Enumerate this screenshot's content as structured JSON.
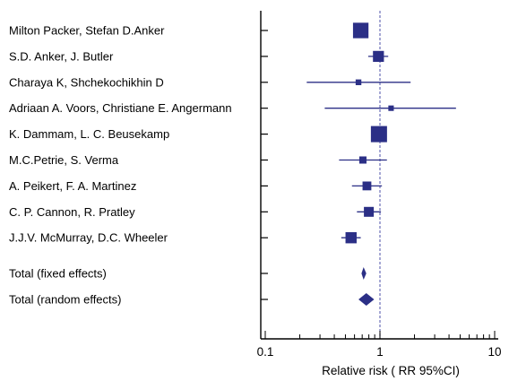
{
  "chart_data": {
    "type": "forest",
    "xlabel": "Relative risk ( RR 95%CI)",
    "x_scale": "log",
    "xlim": [
      0.1,
      10
    ],
    "x_ticks": [
      "0.1",
      "1",
      "10"
    ],
    "reference_line": 1,
    "colors": {
      "marker": "#2b2f86",
      "axis": "#000000",
      "reference": "#6b6fb8"
    },
    "studies": [
      {
        "label": "Milton Packer, Stefan D.Anker",
        "rr": 0.68,
        "ci": [
          0.6,
          0.76
        ]
      },
      {
        "label": "S.D. Anker, J. Butler",
        "rr": 0.97,
        "ci": [
          0.79,
          1.18
        ]
      },
      {
        "label": "Charaya K, Shchekochikhin D",
        "rr": 0.65,
        "ci": [
          0.23,
          1.85
        ]
      },
      {
        "label": "Adriaan A. Voors, Christiane E. Angermann",
        "rr": 1.25,
        "ci": [
          0.33,
          4.6
        ]
      },
      {
        "label": "K. Dammam, L. C. Beusekamp",
        "rr": 0.98,
        "ci": [
          0.88,
          1.1
        ]
      },
      {
        "label": "M.C.Petrie, S. Verma",
        "rr": 0.71,
        "ci": [
          0.44,
          1.15
        ]
      },
      {
        "label": "A. Peikert, F. A. Martinez",
        "rr": 0.77,
        "ci": [
          0.57,
          1.04
        ]
      },
      {
        "label": "C. P. Cannon, R. Pratley",
        "rr": 0.8,
        "ci": [
          0.63,
          1.02
        ]
      },
      {
        "label": "J.J.V. McMurray, D.C. Wheeler",
        "rr": 0.56,
        "ci": [
          0.46,
          0.68
        ]
      }
    ],
    "totals": [
      {
        "label": "Total (fixed effects)",
        "rr": 0.72,
        "ci": [
          0.69,
          0.76
        ]
      },
      {
        "label": "Total (random effects)",
        "rr": 0.76,
        "ci": [
          0.65,
          0.89
        ]
      }
    ]
  }
}
